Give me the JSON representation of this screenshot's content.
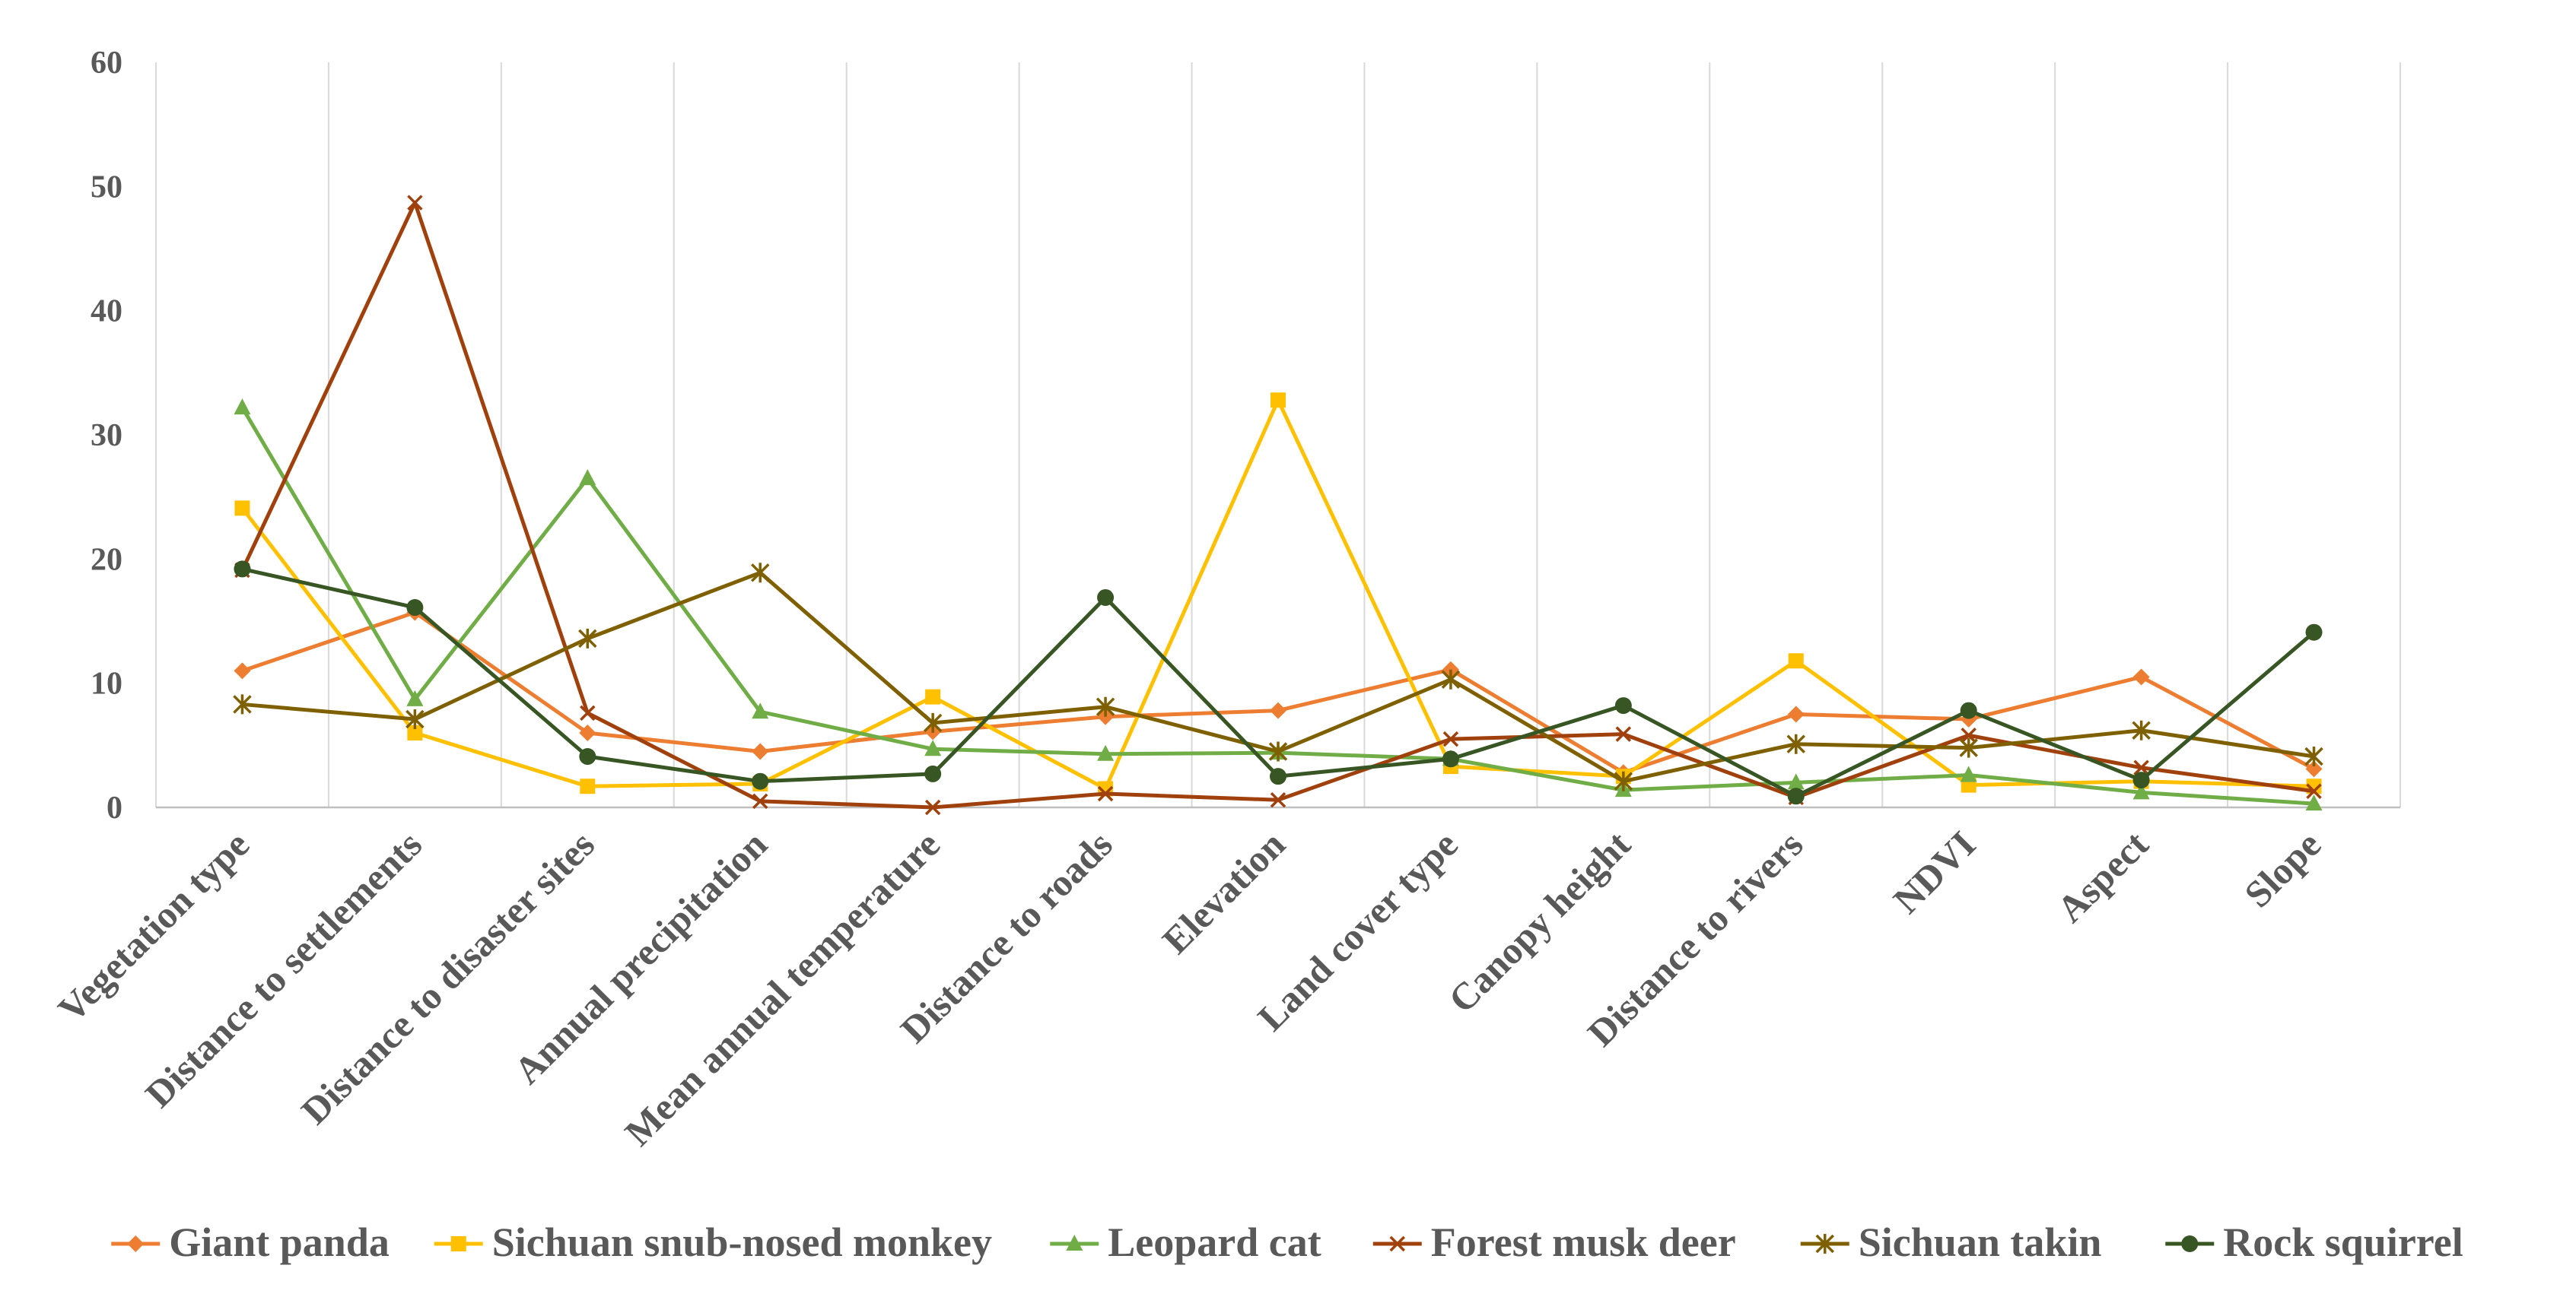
{
  "chart_data": {
    "type": "line",
    "title": "",
    "xlabel": "",
    "ylabel": "",
    "ylim": [
      0,
      60
    ],
    "yticks": [
      0,
      10,
      20,
      30,
      40,
      50,
      60
    ],
    "grid": "vertical",
    "legend_position": "bottom",
    "categories": [
      "Vegetation type",
      "Distance to settlements",
      "Distance to disaster sites",
      "Annual precipitation",
      "Mean annual temperature",
      "Distance to roads",
      "Elevation",
      "Land cover type",
      "Canopy height",
      "Distance to rivers",
      "NDVI",
      "Aspect",
      "Slope"
    ],
    "series": [
      {
        "name": "Giant panda",
        "color": "#ED7D31",
        "marker": "diamond",
        "values": [
          11.0,
          15.7,
          6.0,
          4.5,
          6.1,
          7.3,
          7.8,
          11.1,
          2.8,
          7.5,
          7.1,
          10.5,
          3.1
        ]
      },
      {
        "name": "Sichuan snub-nosed monkey",
        "color": "#FFC000",
        "marker": "square",
        "values": [
          24.1,
          6.0,
          1.7,
          1.9,
          8.9,
          1.5,
          32.8,
          3.3,
          2.5,
          11.8,
          1.8,
          2.1,
          1.7
        ]
      },
      {
        "name": "Leopard cat",
        "color": "#70AD47",
        "marker": "triangle",
        "values": [
          32.2,
          8.7,
          26.5,
          7.7,
          4.7,
          4.3,
          4.4,
          3.9,
          1.4,
          2.0,
          2.6,
          1.2,
          0.3
        ]
      },
      {
        "name": "Forest musk deer",
        "color": "#A0410D",
        "marker": "x",
        "values": [
          19.1,
          48.7,
          7.6,
          0.5,
          0.0,
          1.1,
          0.6,
          5.5,
          5.9,
          0.8,
          5.8,
          3.2,
          1.3
        ]
      },
      {
        "name": "Sichuan takin",
        "color": "#7F6000",
        "marker": "star",
        "values": [
          8.3,
          7.1,
          13.6,
          18.9,
          6.8,
          8.1,
          4.5,
          10.3,
          2.1,
          5.1,
          4.8,
          6.2,
          4.1
        ]
      },
      {
        "name": "Rock squirrel",
        "color": "#375623",
        "marker": "circle",
        "values": [
          19.2,
          16.1,
          4.1,
          2.1,
          2.7,
          16.9,
          2.5,
          3.9,
          8.2,
          0.9,
          7.8,
          2.2,
          14.1
        ]
      }
    ]
  }
}
